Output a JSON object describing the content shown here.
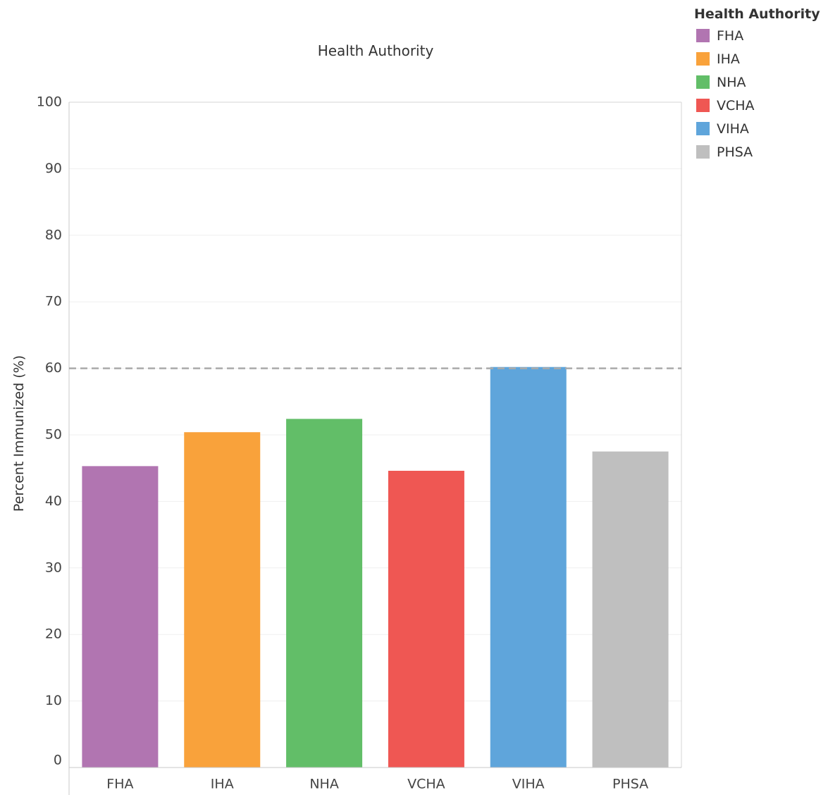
{
  "chart_data": {
    "type": "bar",
    "title": "Health Authority",
    "xlabel": "",
    "ylabel": "Percent Immunized (%)",
    "categories": [
      "FHA",
      "IHA",
      "NHA",
      "VCHA",
      "VIHA",
      "PHSA"
    ],
    "values": [
      45.3,
      50.4,
      52.4,
      44.6,
      60.2,
      47.5
    ],
    "colors": [
      "#b175b1",
      "#f9a23b",
      "#62be68",
      "#ef5753",
      "#5fa5db",
      "#bfbfbf"
    ],
    "ylim": [
      0,
      100
    ],
    "yticks": [
      0,
      10,
      20,
      30,
      40,
      50,
      60,
      70,
      80,
      90,
      100
    ],
    "reference_line": {
      "value": 60,
      "style": "dashed",
      "color": "#aaaaaa"
    },
    "grid": true,
    "legend": {
      "title": "Health Authority",
      "placement": "top-right",
      "items": [
        {
          "label": "FHA",
          "color": "#b175b1"
        },
        {
          "label": "IHA",
          "color": "#f9a23b"
        },
        {
          "label": "NHA",
          "color": "#62be68"
        },
        {
          "label": "VCHA",
          "color": "#ef5753"
        },
        {
          "label": "VIHA",
          "color": "#5fa5db"
        },
        {
          "label": "PHSA",
          "color": "#bfbfbf"
        }
      ]
    }
  }
}
